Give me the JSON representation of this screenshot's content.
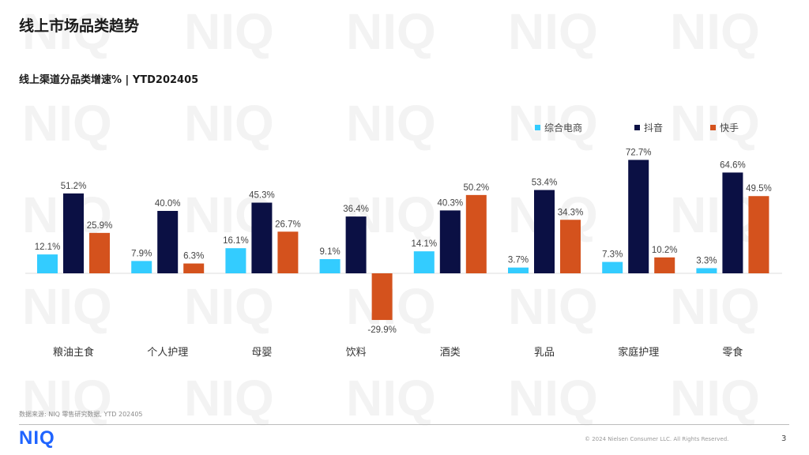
{
  "page": {
    "title": "线上市场品类趋势",
    "footnote": "数据来源: NIQ 零售研究数据,  YTD 202405",
    "logo_text": "NIQ",
    "copyright": "© 2024 Nielsen Consumer LLC. All Rights Reserved.",
    "page_number": "3",
    "watermark_text": "NIQ"
  },
  "colors": {
    "综合电商": "#33ccff",
    "抖音": "#0b1044",
    "快手": "#d4521d",
    "logo": "#1f64ff"
  },
  "chart_data": {
    "type": "bar",
    "title": "线上渠道分品类增速% | YTD202405",
    "xlabel": "",
    "ylabel": "",
    "categories": [
      "粮油主食",
      "个人护理",
      "母婴",
      "饮料",
      "酒类",
      "乳品",
      "家庭护理",
      "零食"
    ],
    "series": [
      {
        "name": "综合电商",
        "values": [
          12.1,
          7.9,
          16.1,
          9.1,
          14.1,
          3.7,
          7.3,
          3.3
        ]
      },
      {
        "name": "抖音",
        "values": [
          51.2,
          40.0,
          45.3,
          36.4,
          40.3,
          53.4,
          72.7,
          64.6
        ]
      },
      {
        "name": "快手",
        "values": [
          25.9,
          6.3,
          26.7,
          -29.9,
          50.2,
          34.3,
          10.2,
          49.5
        ]
      }
    ],
    "value_suffix": "%",
    "ylim": [
      -30,
      73
    ],
    "legend_position": "top-right",
    "grid": false
  }
}
